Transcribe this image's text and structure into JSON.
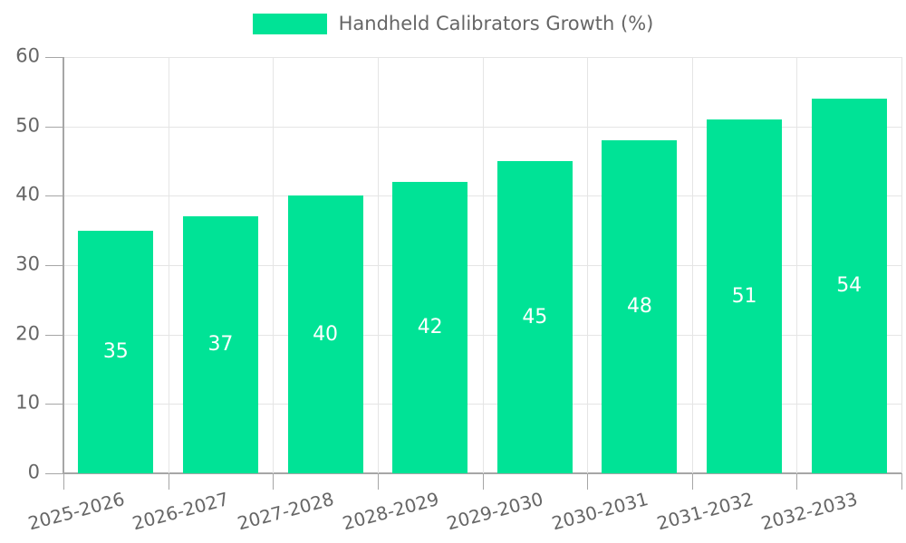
{
  "chart_data": {
    "type": "bar",
    "legend": "Handheld Calibrators Growth (%)",
    "categories": [
      "2025-2026",
      "2026-2027",
      "2027-2028",
      "2028-2029",
      "2029-2030",
      "2030-2031",
      "2031-2032",
      "2032-2033"
    ],
    "series": [
      {
        "name": "Handheld Calibrators Growth (%)",
        "values": [
          35,
          37,
          40,
          42,
          45,
          48,
          51,
          54
        ]
      }
    ],
    "xlabel": "",
    "ylabel": "",
    "ylim": [
      0,
      60
    ],
    "yticks": [
      0,
      10,
      20,
      30,
      40,
      50,
      60
    ],
    "grid": "on",
    "legend_position": "top-center",
    "x_label_rotation_deg": -15,
    "value_labels_position": "inside-center"
  },
  "colors": {
    "bar": "#00E396",
    "grid": "#E5E5E5",
    "axis": "#A6A6A6",
    "text": "#666666",
    "value_label": "#FFFFFF",
    "background": "#FFFFFF"
  }
}
